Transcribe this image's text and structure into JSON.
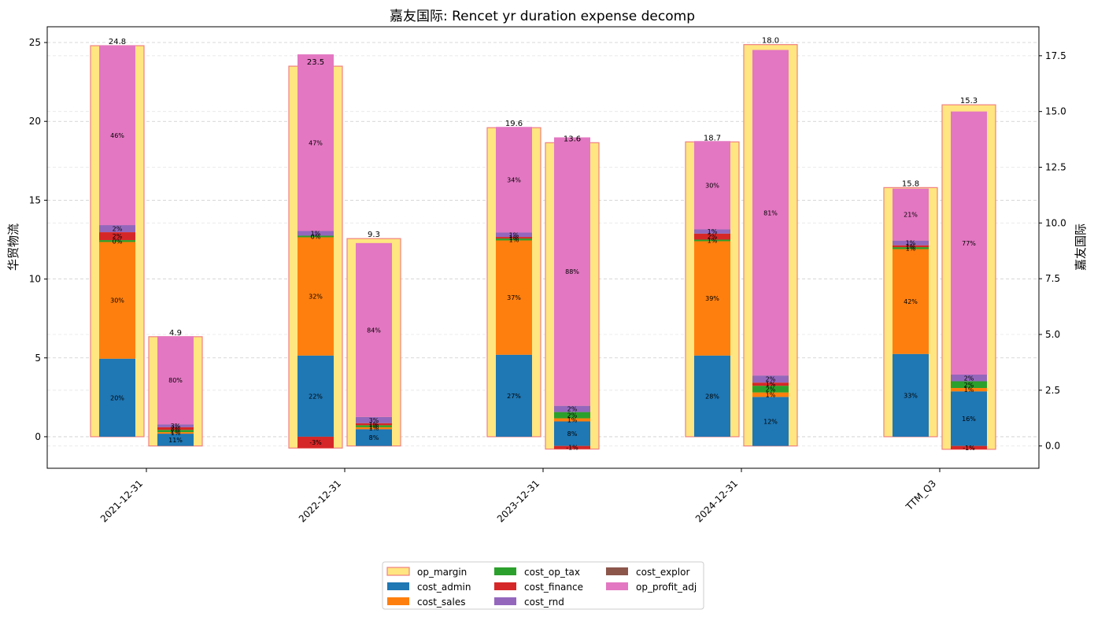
{
  "chart_data": {
    "type": "bar",
    "title": "嘉友国际: Rencet yr duration expense decomp",
    "ylabel_left": "华贸物流",
    "ylabel_right": "嘉友国际",
    "categories": [
      "2021-12-31",
      "2022-12-31",
      "2023-12-31",
      "2024-12-31",
      "TTM_Q3"
    ],
    "left_axis": {
      "ylim": [
        -2,
        26
      ],
      "ticks": [
        0,
        5,
        10,
        15,
        20,
        25
      ]
    },
    "right_axis": {
      "ylim": [
        -1.0,
        18.8
      ],
      "ticks": [
        "0.0",
        "2.5",
        "5.0",
        "7.5",
        "10.0",
        "12.5",
        "15.0",
        "17.5"
      ]
    },
    "grid": true,
    "legend": {
      "placement": "bottom-center",
      "items": [
        {
          "name": "op_margin",
          "color": "#ffe680",
          "edge": "#f08080"
        },
        {
          "name": "cost_admin",
          "color": "#1f77b4"
        },
        {
          "name": "cost_sales",
          "color": "#ff7f0e"
        },
        {
          "name": "cost_op_tax",
          "color": "#2ca02c"
        },
        {
          "name": "cost_finance",
          "color": "#d62728"
        },
        {
          "name": "cost_rnd",
          "color": "#9467bd"
        },
        {
          "name": "cost_explor",
          "color": "#8c564b"
        },
        {
          "name": "op_profit_adj",
          "color": "#e377c2"
        }
      ]
    },
    "series_order": [
      "cost_admin",
      "cost_sales",
      "cost_op_tax",
      "cost_finance",
      "cost_rnd",
      "cost_explor",
      "op_profit_adj"
    ],
    "colors": {
      "cost_admin": "#1f77b4",
      "cost_sales": "#ff7f0e",
      "cost_op_tax": "#2ca02c",
      "cost_finance": "#d62728",
      "cost_rnd": "#9467bd",
      "cost_explor": "#8c564b",
      "op_profit_adj": "#e377c2",
      "op_margin_fill": "#ffe680",
      "op_margin_edge": "#f08080"
    },
    "companies": [
      {
        "name": "华贸物流",
        "axis": "left",
        "op_margin": [
          24.8,
          23.5,
          19.6,
          18.7,
          15.8
        ],
        "op_margin_labels": [
          "24.8",
          "23.5",
          "19.6",
          "18.7",
          "15.8"
        ],
        "segments": [
          {
            "cost_admin": 4.95,
            "cost_sales": 7.4,
            "cost_op_tax": 0.12,
            "cost_finance": 0.5,
            "cost_rnd": 0.45,
            "cost_explor": 0,
            "op_profit_adj": 11.4
          },
          {
            "cost_admin": 5.15,
            "cost_sales": 7.5,
            "cost_op_tax": 0.1,
            "cost_finance": -0.72,
            "cost_rnd": 0.3,
            "cost_explor": 0,
            "op_profit_adj": 11.2
          },
          {
            "cost_admin": 5.2,
            "cost_sales": 7.25,
            "cost_op_tax": 0.12,
            "cost_finance": 0.1,
            "cost_rnd": 0.28,
            "cost_explor": 0,
            "op_profit_adj": 6.7
          },
          {
            "cost_admin": 5.15,
            "cost_sales": 7.25,
            "cost_op_tax": 0.1,
            "cost_finance": 0.38,
            "cost_rnd": 0.27,
            "cost_explor": 0,
            "op_profit_adj": 5.6
          },
          {
            "cost_admin": 5.25,
            "cost_sales": 6.65,
            "cost_op_tax": 0.12,
            "cost_finance": 0.12,
            "cost_rnd": 0.3,
            "cost_explor": 0,
            "op_profit_adj": 3.3
          }
        ],
        "segment_labels": [
          {
            "cost_admin": "20%",
            "cost_sales": "30%",
            "cost_op_tax": "0%",
            "cost_finance": "2%",
            "cost_rnd": "2%",
            "op_profit_adj": "46%"
          },
          {
            "cost_admin": "22%",
            "cost_sales": "32%",
            "cost_op_tax": "0%",
            "cost_finance": "-3%",
            "cost_rnd": "1%",
            "op_profit_adj": "47%"
          },
          {
            "cost_admin": "27%",
            "cost_sales": "37%",
            "cost_op_tax": "1%",
            "cost_finance": "1%",
            "cost_rnd": "1%",
            "op_profit_adj": "34%"
          },
          {
            "cost_admin": "28%",
            "cost_sales": "39%",
            "cost_op_tax": "1%",
            "cost_finance": "2%",
            "cost_rnd": "1%",
            "op_profit_adj": "30%"
          },
          {
            "cost_admin": "33%",
            "cost_sales": "42%",
            "cost_op_tax": "1%",
            "cost_finance": "1%",
            "cost_rnd": "1%",
            "op_profit_adj": "21%"
          }
        ]
      },
      {
        "name": "嘉友国际",
        "axis": "right",
        "op_margin": [
          4.9,
          9.3,
          13.6,
          18.0,
          15.3
        ],
        "op_margin_labels": [
          "4.9",
          "9.3",
          "13.6",
          "18.0",
          "15.3"
        ],
        "segments": [
          {
            "cost_admin": 0.55,
            "cost_sales": 0.07,
            "cost_op_tax": 0.1,
            "cost_finance": 0.12,
            "cost_rnd": 0.13,
            "cost_explor": 0,
            "op_profit_adj": 3.95
          },
          {
            "cost_admin": 0.75,
            "cost_sales": 0.09,
            "cost_op_tax": 0.09,
            "cost_finance": 0.09,
            "cost_rnd": 0.28,
            "cost_explor": 0,
            "op_profit_adj": 7.8
          },
          {
            "cost_admin": 1.1,
            "cost_sales": 0.14,
            "cost_op_tax": 0.28,
            "cost_finance": -0.14,
            "cost_rnd": 0.28,
            "cost_explor": 0,
            "op_profit_adj": 12.04
          },
          {
            "cost_admin": 2.2,
            "cost_sales": 0.2,
            "cost_op_tax": 0.3,
            "cost_finance": 0.14,
            "cost_rnd": 0.32,
            "cost_explor": 0,
            "op_profit_adj": 14.6
          },
          {
            "cost_admin": 2.45,
            "cost_sales": 0.15,
            "cost_op_tax": 0.3,
            "cost_finance": -0.15,
            "cost_rnd": 0.3,
            "cost_explor": 0,
            "op_profit_adj": 11.8
          }
        ],
        "segment_labels": [
          {
            "cost_admin": "11%",
            "cost_sales": "1%",
            "cost_op_tax": "2%",
            "cost_finance": "2%",
            "cost_rnd": "3%",
            "op_profit_adj": "80%"
          },
          {
            "cost_admin": "8%",
            "cost_sales": "1%",
            "cost_op_tax": "1%",
            "cost_finance": "1%",
            "cost_rnd": "3%",
            "op_profit_adj": "84%"
          },
          {
            "cost_admin": "8%",
            "cost_sales": "1%",
            "cost_op_tax": "2%",
            "cost_finance": "-1%",
            "cost_rnd": "2%",
            "op_profit_adj": "88%"
          },
          {
            "cost_admin": "12%",
            "cost_sales": "1%",
            "cost_op_tax": "2%",
            "cost_finance": "1%",
            "cost_rnd": "2%",
            "op_profit_adj": "81%"
          },
          {
            "cost_admin": "16%",
            "cost_sales": "1%",
            "cost_op_tax": "2%",
            "cost_finance": "-1%",
            "cost_rnd": "2%",
            "op_profit_adj": "77%"
          }
        ]
      }
    ]
  }
}
